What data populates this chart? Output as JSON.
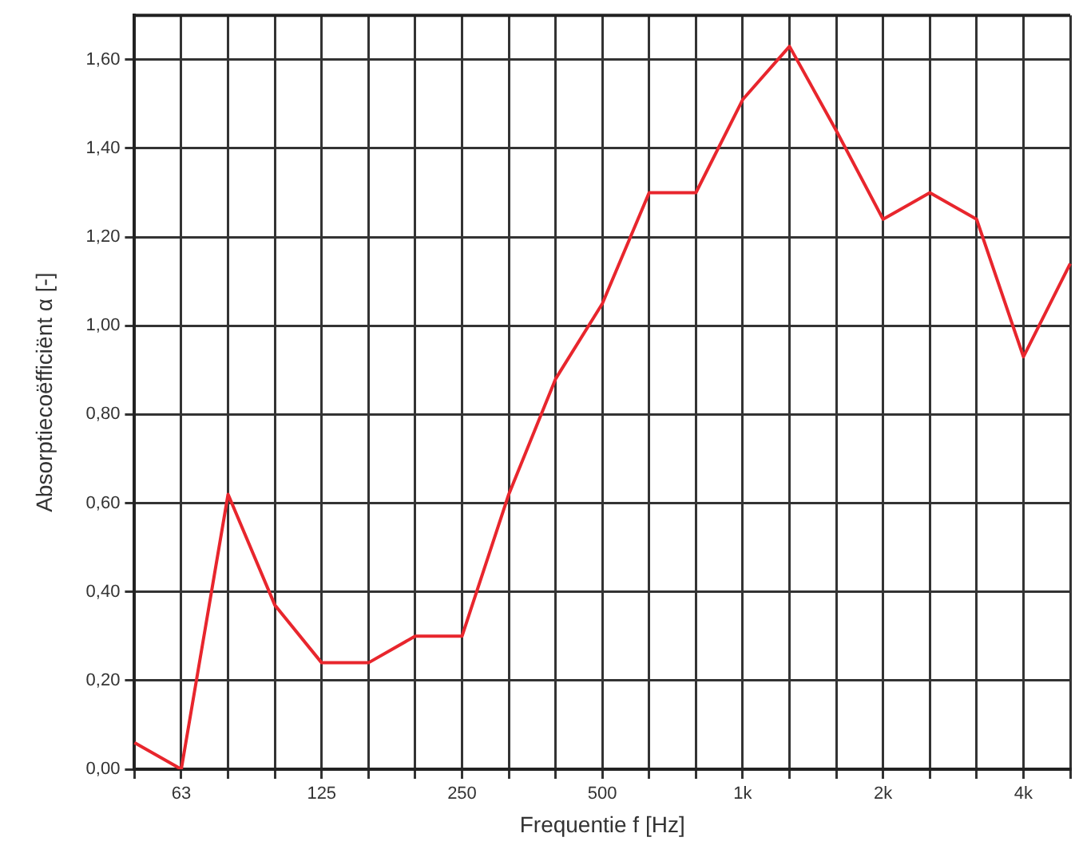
{
  "chart_data": {
    "type": "line",
    "xlabel": "Frequentie f [Hz]",
    "ylabel": "Absorptiecoëfficiënt α [-]",
    "categories": [
      null,
      "63",
      null,
      null,
      "125",
      null,
      null,
      "250",
      null,
      null,
      "500",
      null,
      null,
      "1k",
      null,
      null,
      "2k",
      null,
      null,
      "4k",
      null
    ],
    "series": [
      {
        "color": "#e8262d",
        "values": [
          0.06,
          0.0,
          0.62,
          0.37,
          0.24,
          0.24,
          0.3,
          0.3,
          0.62,
          0.88,
          1.05,
          1.3,
          1.3,
          1.51,
          1.63,
          1.44,
          1.24,
          1.3,
          1.24,
          0.93,
          1.14
        ]
      }
    ],
    "ylim": [
      0,
      1.7
    ],
    "yticks": [
      {
        "value": 0,
        "label": "0,00"
      },
      {
        "value": 0.2,
        "label": "0,20"
      },
      {
        "value": 0.4,
        "label": "0,40"
      },
      {
        "value": 0.6,
        "label": "0,60"
      },
      {
        "value": 0.8,
        "label": "0,80"
      },
      {
        "value": 1.0,
        "label": "1,00"
      },
      {
        "value": 1.2,
        "label": "1,20"
      },
      {
        "value": 1.4,
        "label": "1,40"
      },
      {
        "value": 1.6,
        "label": "1,60"
      }
    ],
    "grid": true,
    "legend": false,
    "marker": "none",
    "line_style": "solid"
  }
}
